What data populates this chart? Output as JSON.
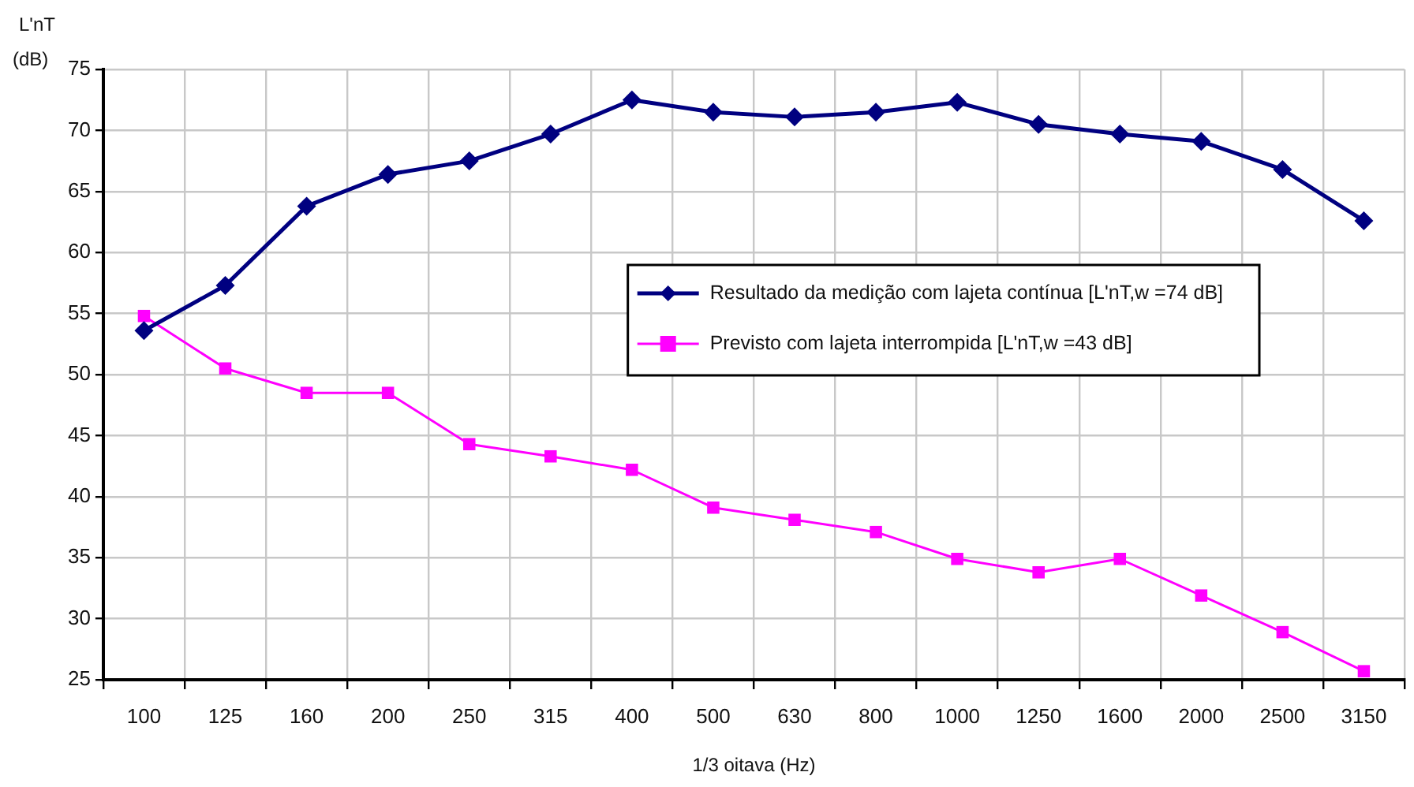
{
  "chart_data": {
    "type": "line",
    "xlabel": "1/3 oitava (Hz)",
    "ylabel": "L'nT (dB)",
    "categories": [
      "100",
      "125",
      "160",
      "200",
      "250",
      "315",
      "400",
      "500",
      "630",
      "800",
      "1000",
      "1250",
      "1600",
      "2000",
      "2500",
      "3150"
    ],
    "series": [
      {
        "name": "Resultado da medição com lajeta contínua [L'nT,w =74 dB]",
        "color": "#000080",
        "marker": "diamond",
        "values": [
          53.6,
          57.3,
          63.8,
          66.4,
          67.5,
          69.7,
          72.5,
          71.5,
          71.1,
          71.5,
          72.3,
          70.5,
          69.7,
          69.1,
          66.8,
          62.6
        ]
      },
      {
        "name": "Previsto com lajeta interrompida [L'nT,w =43 dB]",
        "color": "#ff00ff",
        "marker": "square",
        "values": [
          54.8,
          50.5,
          48.5,
          48.5,
          44.3,
          43.3,
          42.2,
          39.1,
          38.1,
          37.1,
          34.9,
          33.8,
          34.9,
          31.9,
          28.9,
          25.7
        ]
      }
    ],
    "ylim": [
      25,
      75
    ],
    "yticks": [
      25,
      30,
      35,
      40,
      45,
      50,
      55,
      60,
      65,
      70,
      75
    ],
    "grid": true,
    "legend": "right"
  }
}
